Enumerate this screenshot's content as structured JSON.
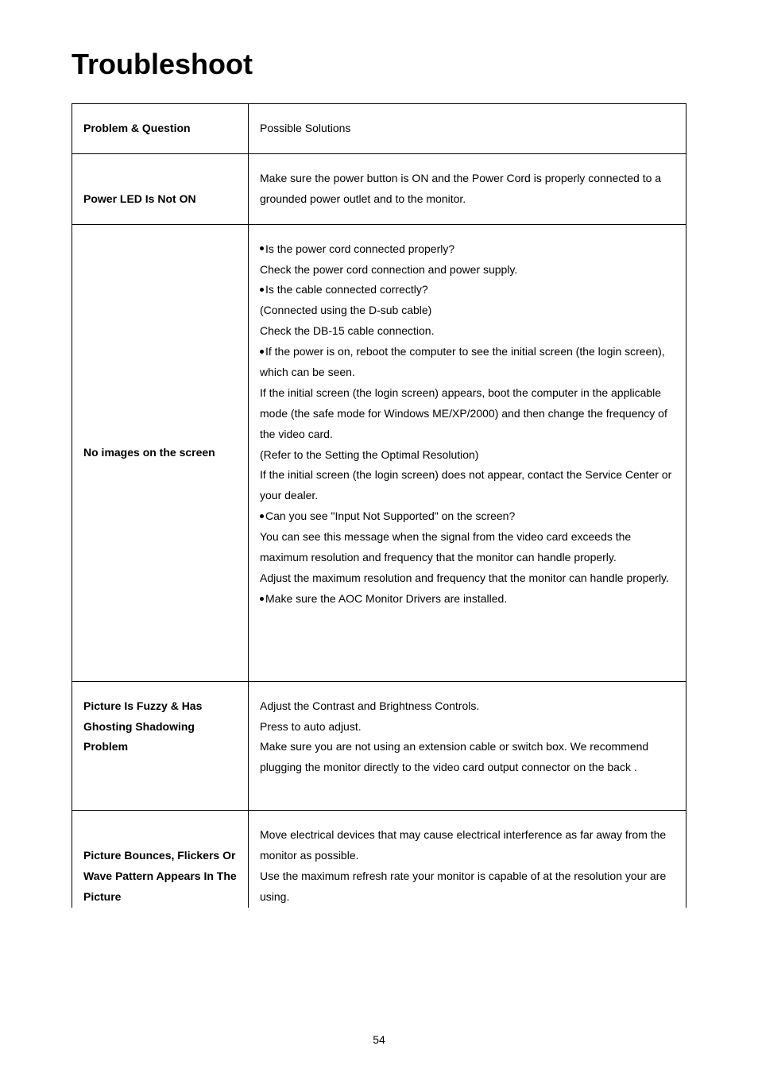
{
  "title": "Troubleshoot",
  "header": {
    "col1": "Problem & Question",
    "col2": "Possible Solutions"
  },
  "rows": [
    {
      "problem": "Power LED Is Not ON",
      "solution_lines": [
        "Make sure the power button is ON and the Power Cord is properly connected to a grounded power outlet and to the monitor."
      ]
    },
    {
      "problem": "No images on the screen",
      "solution_lines": [
        {
          "bullet": true,
          "text": "Is the power cord connected properly?"
        },
        {
          "bullet": false,
          "text": "Check the power cord connection and power supply."
        },
        {
          "bullet": true,
          "text": "Is the cable connected correctly?"
        },
        {
          "bullet": false,
          "text": "(Connected using the D-sub cable)"
        },
        {
          "bullet": false,
          "text": "Check the DB-15 cable connection."
        },
        {
          "bullet": true,
          "text": "If the power is on, reboot the computer to see the initial screen (the login screen), which can be seen."
        },
        {
          "bullet": false,
          "text": "If the initial screen (the login screen) appears, boot the computer in the applicable mode (the safe mode for Windows ME/XP/2000) and then change the frequency of the video card."
        },
        {
          "bullet": false,
          "text": "(Refer to the Setting the Optimal Resolution)"
        },
        {
          "bullet": false,
          "text": "If the initial screen (the login screen) does not appear, contact the Service Center or your dealer."
        },
        {
          "bullet": true,
          "text": "Can you see \"Input Not Supported\" on the screen?"
        },
        {
          "bullet": false,
          "text": "You can see this message when the signal from the video card exceeds the maximum resolution and frequency that the monitor can handle properly."
        },
        {
          "bullet": false,
          "text": "Adjust the maximum resolution and frequency that the monitor can handle properly."
        },
        {
          "bullet": true,
          "text": "Make sure the AOC Monitor Drivers are installed."
        }
      ]
    },
    {
      "problem": "Picture Is Fuzzy & Has Ghosting Shadowing Problem",
      "solution_lines": [
        "Adjust the Contrast and Brightness Controls.",
        "Press to auto adjust.",
        "Make sure you are not using an extension cable or switch box. We recommend plugging the monitor directly to the video card output connector on the back ."
      ]
    },
    {
      "problem": "Picture Bounces, Flickers Or Wave Pattern Appears In The Picture",
      "solution_lines": [
        "Move electrical devices that may cause electrical interference as far away from the monitor as possible.",
        "Use the maximum refresh rate your monitor is capable of at the resolution your are using."
      ]
    }
  ],
  "page_number": "54"
}
